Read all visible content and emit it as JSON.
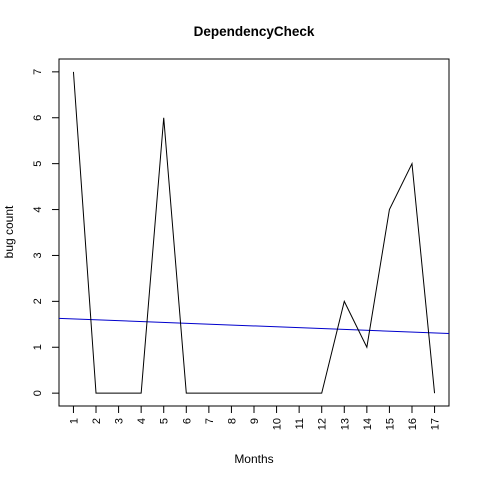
{
  "chart_data": {
    "type": "line",
    "title": "DependencyCheck",
    "xlabel": "Months",
    "ylabel": "bug count",
    "x": [
      1,
      2,
      3,
      4,
      5,
      6,
      7,
      8,
      9,
      10,
      11,
      12,
      13,
      14,
      15,
      16,
      17
    ],
    "x_tick_labels": [
      "1",
      "2",
      "3",
      "4",
      "5",
      "6",
      "7",
      "8",
      "9",
      "10",
      "11",
      "12",
      "13",
      "14",
      "15",
      "16",
      "17"
    ],
    "y_tick_labels": [
      "0",
      "1",
      "2",
      "3",
      "4",
      "5",
      "6",
      "7"
    ],
    "series": [
      {
        "values": [
          7,
          0,
          0,
          0,
          6,
          0,
          0,
          0,
          0,
          0,
          0,
          0,
          2,
          1,
          4,
          5,
          0
        ],
        "color": "#000000"
      }
    ],
    "trend_line": {
      "color": "#0000cc",
      "y_at_x_min": 1.63,
      "y_at_x_max": 1.3
    },
    "xlim": [
      0.36,
      17.64
    ],
    "ylim": [
      -0.28,
      7.28
    ],
    "grid": false,
    "legend": "none"
  }
}
